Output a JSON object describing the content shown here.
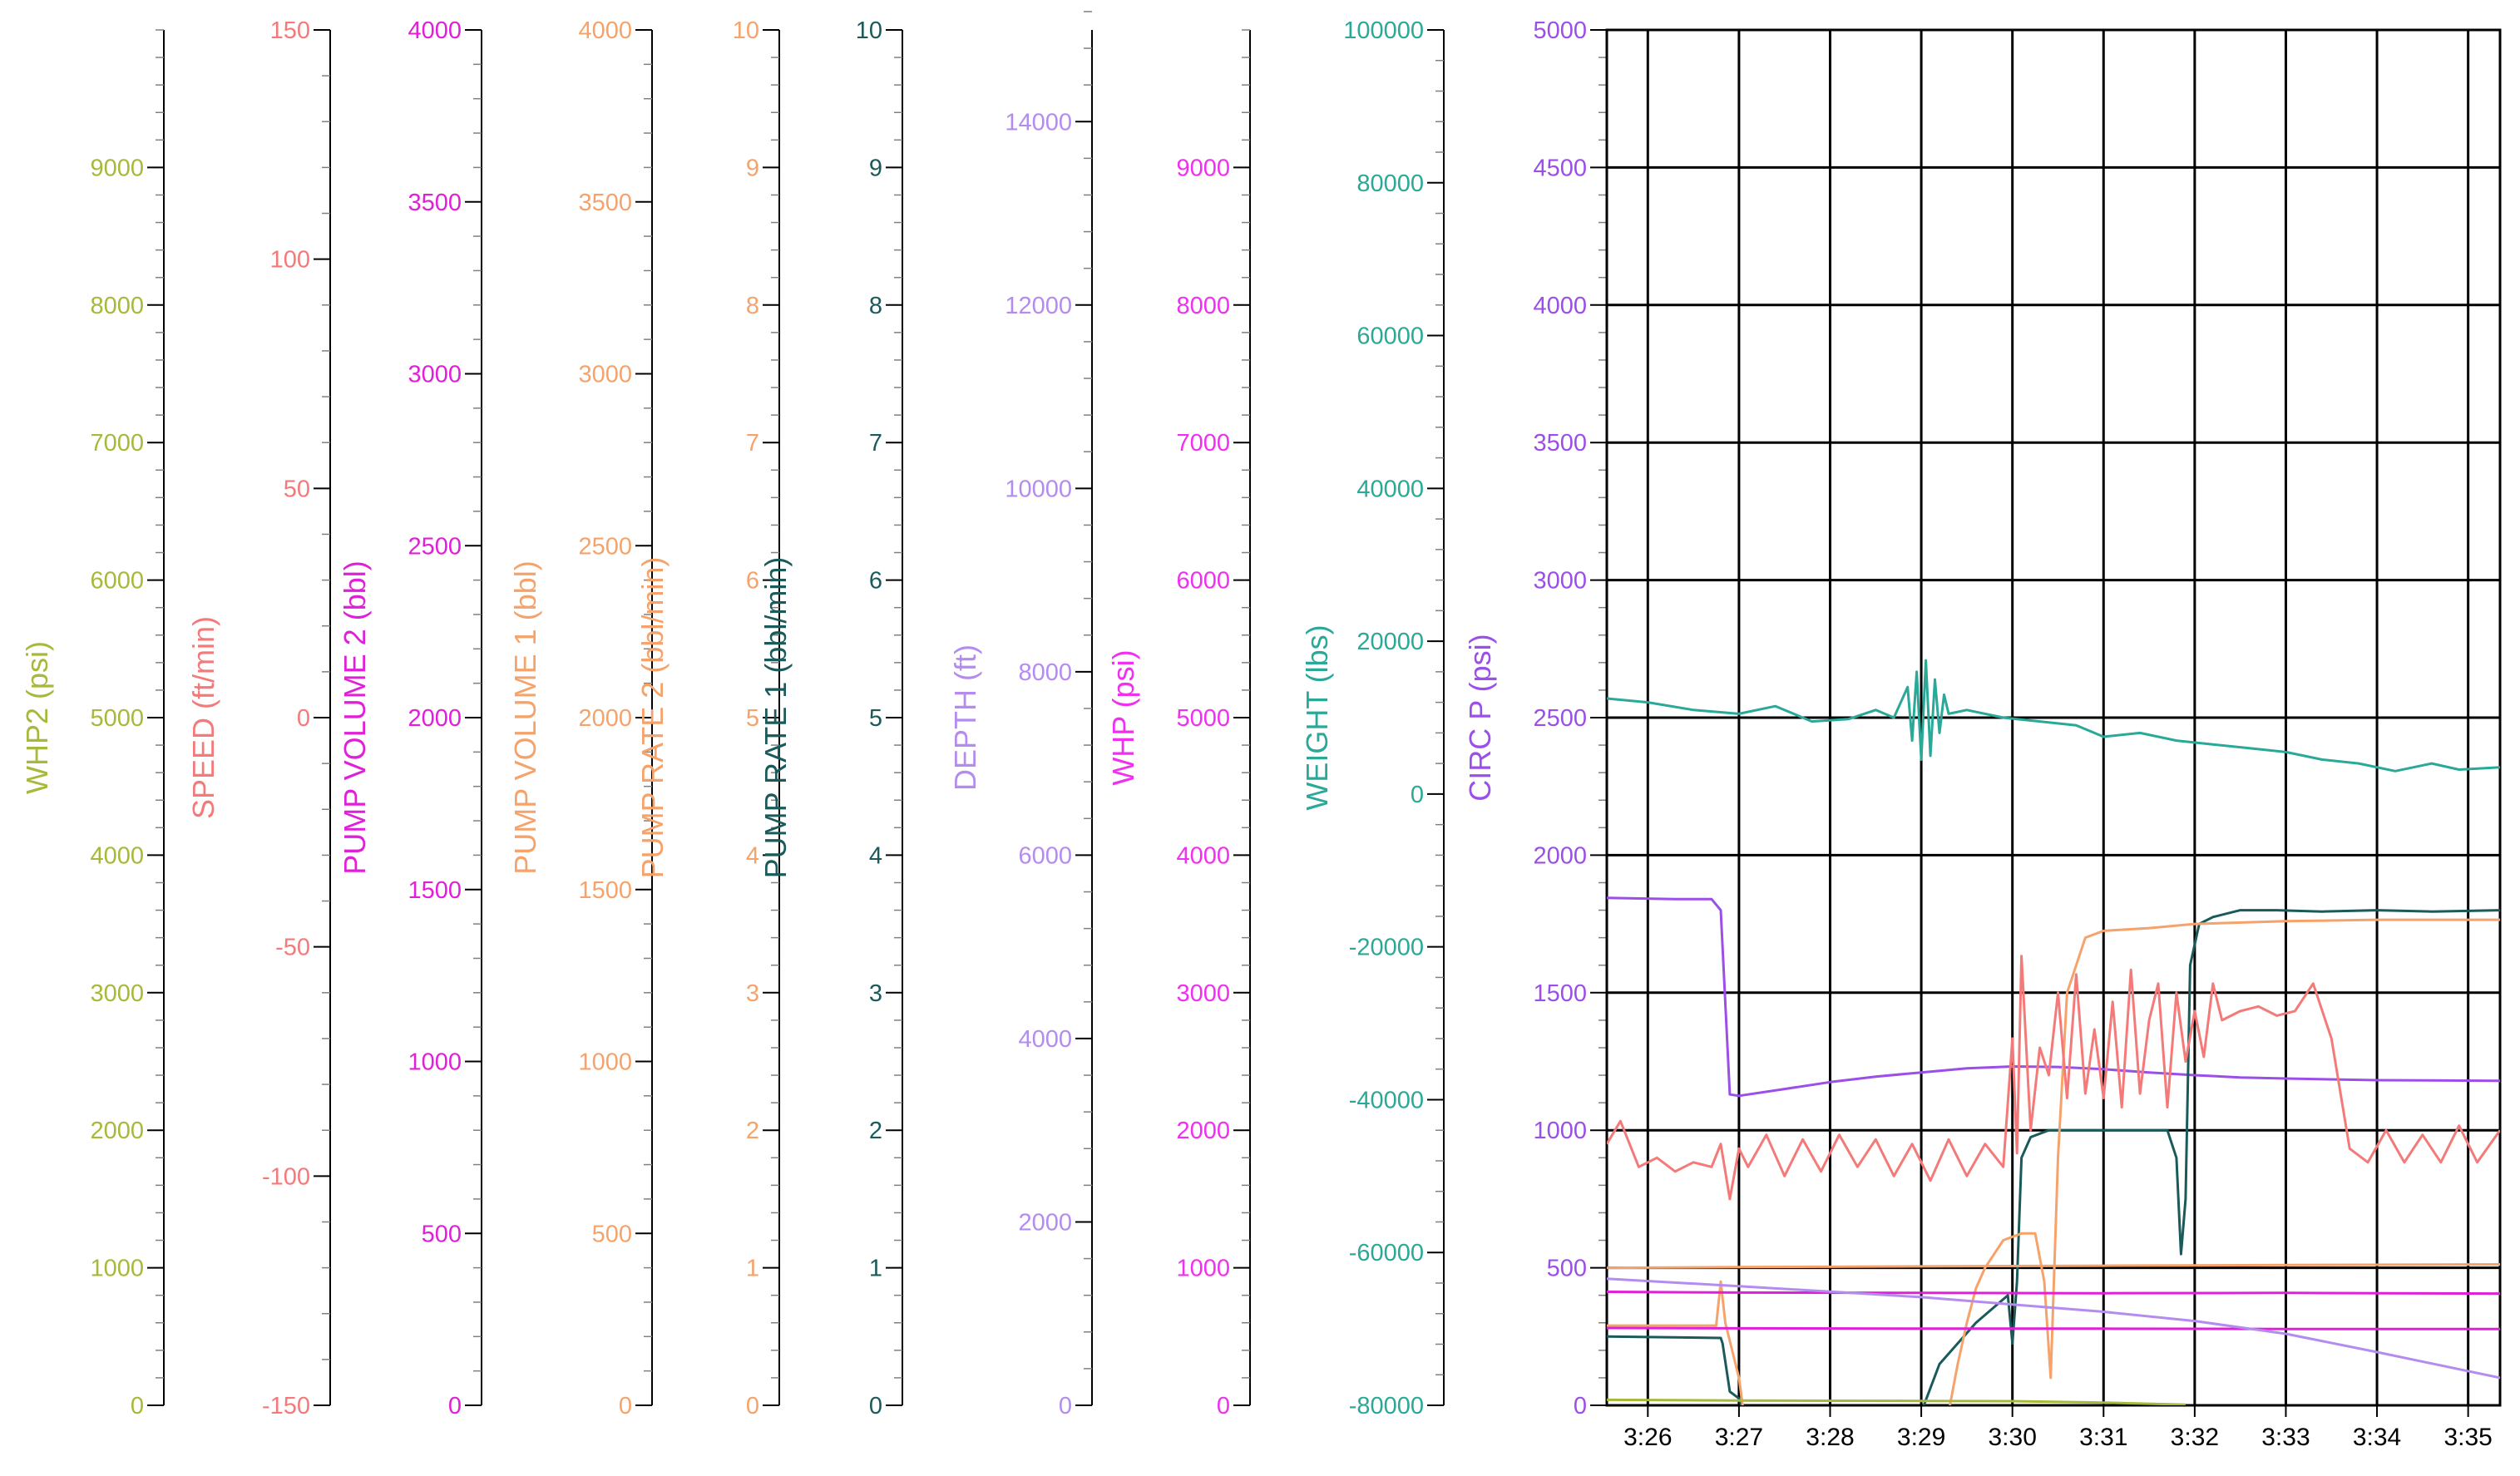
{
  "chart_data": {
    "type": "line",
    "x_ticks": [
      "3:26",
      "3:27",
      "3:28",
      "3:29",
      "3:30",
      "3:31",
      "3:32",
      "3:33",
      "3:34",
      "3:35"
    ],
    "x_range_minutes": [
      25.55,
      35.35
    ],
    "grid": true,
    "axes": [
      {
        "name": "WHP2 (psi)",
        "color": "#a8b83a",
        "range": [
          0,
          10000
        ],
        "major": 1000,
        "minor": 200,
        "ticks": [
          "0",
          "1000",
          "2000",
          "3000",
          "4000",
          "5000",
          "6000",
          "7000",
          "8000",
          "9000"
        ]
      },
      {
        "name": "SPEED (ft/min)",
        "color": "#f47a7a",
        "range": [
          -150,
          150
        ],
        "major": 50,
        "minor": 10,
        "ticks": [
          "-150",
          "-100",
          "-50",
          "0",
          "50",
          "100",
          "150"
        ]
      },
      {
        "name": "PUMP VOLUME 2 (bbl)",
        "color": "#e020d8",
        "range": [
          0,
          4000
        ],
        "major": 500,
        "minor": 100,
        "ticks": [
          "0",
          "500",
          "1000",
          "1500",
          "2000",
          "2500",
          "3000",
          "3500",
          "4000"
        ]
      },
      {
        "name": "PUMP VOLUME 1 (bbl)",
        "color": "#f5a36a",
        "range": [
          0,
          4000
        ],
        "major": 500,
        "minor": 100,
        "ticks": [
          "0",
          "500",
          "1000",
          "1500",
          "2000",
          "2500",
          "3000",
          "3500",
          "4000"
        ]
      },
      {
        "name": "PUMP RATE 2 (bbl/min)",
        "color": "#f5a36a",
        "range": [
          0,
          10
        ],
        "major": 1,
        "minor": 0.2,
        "ticks": [
          "0",
          "1",
          "2",
          "3",
          "4",
          "5",
          "6",
          "7",
          "8",
          "9",
          "10"
        ]
      },
      {
        "name": "PUMP RATE 1 (bbl/min)",
        "color": "#1a5a5a",
        "range": [
          0,
          10
        ],
        "major": 1,
        "minor": 0.2,
        "ticks": [
          "0",
          "1",
          "2",
          "3",
          "4",
          "5",
          "6",
          "7",
          "8",
          "9",
          "10"
        ]
      },
      {
        "name": "DEPTH (ft)",
        "color": "#b48cf0",
        "range": [
          0,
          15000
        ],
        "major": 2000,
        "minor": 400,
        "ticks": [
          "0",
          "2000",
          "4000",
          "6000",
          "8000",
          "10000",
          "12000",
          "14000"
        ]
      },
      {
        "name": "WHP (psi)",
        "color": "#f030f0",
        "range": [
          0,
          10000
        ],
        "major": 1000,
        "minor": 200,
        "ticks": [
          "0",
          "1000",
          "2000",
          "3000",
          "4000",
          "5000",
          "6000",
          "7000",
          "8000",
          "9000"
        ]
      },
      {
        "name": "WEIGHT (lbs)",
        "color": "#2aa898",
        "range": [
          -80000,
          100000
        ],
        "major": 20000,
        "minor": 4000,
        "ticks": [
          "-80000",
          "-60000",
          "-40000",
          "-20000",
          "0",
          "20000",
          "40000",
          "60000",
          "80000",
          "100000"
        ]
      },
      {
        "name": "CIRC P (psi)",
        "color": "#9b4fe8",
        "range": [
          0,
          5000
        ],
        "major": 500,
        "minor": 100,
        "ticks": [
          "0",
          "500",
          "1000",
          "1500",
          "2000",
          "2500",
          "3000",
          "3500",
          "4000",
          "4500",
          "5000"
        ]
      }
    ],
    "series": [
      {
        "axis": 9,
        "color": "#9b4fe8",
        "x": [
          25.55,
          26.3,
          26.7,
          26.8,
          26.9,
          27.0,
          27.5,
          28.0,
          28.5,
          29.0,
          29.5,
          30.0,
          30.5,
          31.0,
          31.5,
          32.0,
          32.5,
          33.0,
          34.0,
          35.35
        ],
        "y": [
          1845,
          1840,
          1840,
          1800,
          1130,
          1125,
          1150,
          1175,
          1195,
          1210,
          1225,
          1232,
          1230,
          1222,
          1210,
          1200,
          1192,
          1188,
          1182,
          1180
        ]
      },
      {
        "axis": 8,
        "color": "#2aa898",
        "x": [
          25.55,
          26.0,
          26.5,
          27.0,
          27.4,
          27.8,
          28.2,
          28.5,
          28.7,
          28.85,
          28.9,
          28.95,
          29.0,
          29.05,
          29.1,
          29.15,
          29.2,
          29.25,
          29.3,
          29.5,
          29.9,
          30.3,
          30.7,
          31.0,
          31.4,
          31.8,
          32.2,
          32.6,
          33.0,
          33.4,
          33.8,
          34.2,
          34.6,
          34.9,
          35.35
        ],
        "y": [
          12500,
          12000,
          11000,
          10500,
          11500,
          9500,
          9800,
          11000,
          10000,
          14000,
          7000,
          16000,
          4500,
          17500,
          5000,
          15000,
          8000,
          13000,
          10500,
          11000,
          10000,
          9500,
          9000,
          7500,
          8000,
          7000,
          6500,
          6000,
          5500,
          4500,
          4000,
          3000,
          4000,
          3200,
          3500
        ]
      },
      {
        "axis": 5,
        "color": "#1a5a5a",
        "x": [
          25.55,
          26.8,
          26.82,
          26.9,
          27.0,
          27.05,
          29.0,
          29.2,
          29.6,
          29.95,
          30.0,
          30.05,
          30.1,
          30.2,
          30.4,
          30.7,
          31.0,
          31.3,
          31.7,
          31.8,
          31.85,
          31.9,
          31.95,
          32.05,
          32.2,
          32.5,
          32.9,
          33.4,
          34.0,
          34.6,
          35.35
        ],
        "y": [
          0.5,
          0.49,
          0.45,
          0.1,
          0.05,
          -0.05,
          -0.05,
          0.3,
          0.6,
          0.8,
          0.45,
          0.9,
          1.8,
          1.95,
          2.0,
          2.0,
          2.0,
          2.0,
          2.0,
          1.8,
          1.1,
          1.5,
          3.2,
          3.5,
          3.55,
          3.6,
          3.6,
          3.59,
          3.6,
          3.59,
          3.6
        ]
      },
      {
        "axis": 4,
        "color": "#f5a36a",
        "x": [
          25.55,
          26.7,
          26.75,
          26.8,
          26.85,
          27.0,
          27.05,
          29.3,
          29.4,
          29.5,
          29.6,
          29.7,
          29.9,
          30.1,
          30.25,
          30.35,
          30.4,
          30.42,
          30.5,
          30.6,
          30.8,
          31.0,
          31.5,
          32.0,
          33.0,
          34.0,
          35.35
        ],
        "y": [
          0.58,
          0.58,
          0.58,
          0.9,
          0.6,
          0.2,
          -0.05,
          -0.05,
          0.3,
          0.6,
          0.85,
          1.0,
          1.2,
          1.25,
          1.25,
          0.9,
          0.4,
          0.2,
          1.8,
          3.0,
          3.4,
          3.45,
          3.47,
          3.5,
          3.52,
          3.53,
          3.53
        ]
      },
      {
        "axis": 1,
        "color": "#f47a7a",
        "x": [
          25.55,
          25.7,
          25.9,
          26.1,
          26.3,
          26.5,
          26.7,
          26.8,
          26.9,
          27.0,
          27.1,
          27.3,
          27.5,
          27.7,
          27.9,
          28.1,
          28.3,
          28.5,
          28.7,
          28.9,
          29.1,
          29.3,
          29.5,
          29.7,
          29.9,
          30.0,
          30.05,
          30.1,
          30.2,
          30.3,
          30.4,
          30.5,
          30.6,
          30.7,
          30.8,
          30.9,
          31.0,
          31.1,
          31.2,
          31.3,
          31.4,
          31.5,
          31.6,
          31.7,
          31.8,
          31.9,
          32.0,
          32.1,
          32.2,
          32.3,
          32.5,
          32.7,
          32.9,
          33.1,
          33.3,
          33.5,
          33.7,
          33.9,
          34.1,
          34.3,
          34.5,
          34.7,
          34.9,
          35.1,
          35.35
        ],
        "y": [
          -93,
          -88,
          -98,
          -96,
          -99,
          -97,
          -98,
          -93,
          -105,
          -94,
          -98,
          -91,
          -100,
          -92,
          -99,
          -91,
          -98,
          -92,
          -100,
          -93,
          -101,
          -92,
          -100,
          -93,
          -98,
          -70,
          -95,
          -52,
          -90,
          -72,
          -78,
          -60,
          -83,
          -56,
          -82,
          -68,
          -83,
          -62,
          -85,
          -55,
          -82,
          -66,
          -58,
          -85,
          -60,
          -75,
          -64,
          -74,
          -58,
          -66,
          -64,
          -63,
          -65,
          -64,
          -58,
          -70,
          -94,
          -97,
          -90,
          -97,
          -91,
          -97,
          -89,
          -97,
          -90
        ]
      },
      {
        "axis": 2,
        "color": "#e020d8",
        "x": [
          25.55,
          27.0,
          29.0,
          31.0,
          33.0,
          35.35
        ],
        "y": [
          330,
          328,
          327,
          326,
          327,
          325
        ]
      },
      {
        "axis": 2,
        "color": "#e020d8",
        "x": [
          25.55,
          27.0,
          29.0,
          31.0,
          33.0,
          35.35
        ],
        "y": [
          225,
          224,
          223,
          223,
          222,
          222
        ]
      },
      {
        "axis": 3,
        "color": "#f5a36a",
        "x": [
          25.55,
          27.0,
          29.0,
          31.0,
          33.0,
          35.35
        ],
        "y": [
          400,
          402,
          404,
          406,
          408,
          410
        ]
      },
      {
        "axis": 6,
        "color": "#b48cf0",
        "x": [
          25.55,
          27.0,
          28.0,
          29.0,
          30.0,
          31.0,
          32.0,
          33.0,
          34.0,
          35.35
        ],
        "y": [
          1380,
          1300,
          1240,
          1180,
          1100,
          1020,
          920,
          780,
          580,
          300
        ]
      },
      {
        "axis": 0,
        "color": "#a8b83a",
        "x": [
          25.55,
          27.0,
          28.0,
          29.0,
          30.0,
          31.0,
          31.9
        ],
        "y": [
          40,
          35,
          33,
          32,
          30,
          20,
          5
        ]
      }
    ]
  }
}
